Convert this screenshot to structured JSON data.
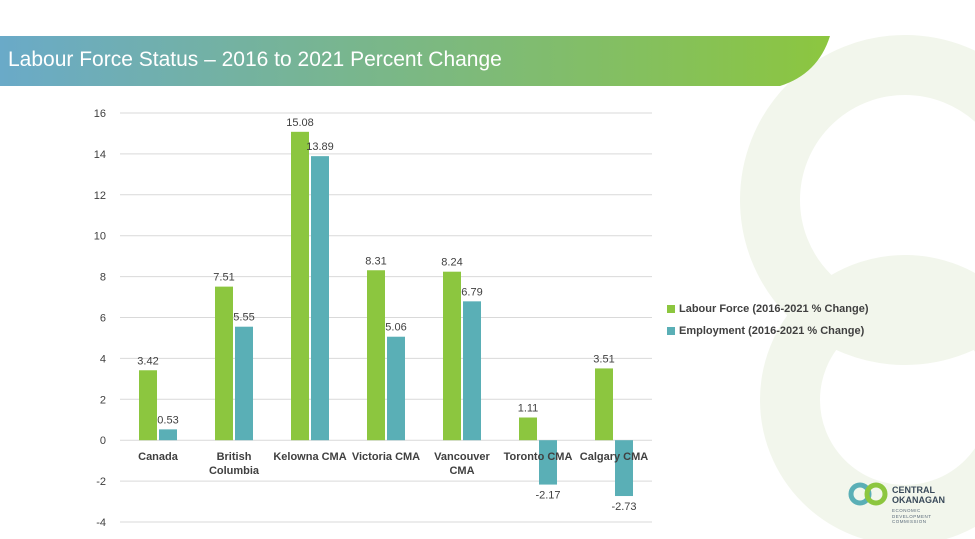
{
  "slide": {
    "title": "Labour Force Status – 2016 to 2021 Percent Change"
  },
  "logo": {
    "line1": "CENTRAL",
    "line2": "OKANAGAN",
    "sub1": "ECONOMIC",
    "sub2": "DEVELOPMENT",
    "sub3": "COMMISSION"
  },
  "colors": {
    "labour_force": "#8cc63f",
    "employment": "#5aafb6",
    "banner_start": "#6aaac8",
    "banner_end": "#8cc63f"
  },
  "chart_data": {
    "type": "bar",
    "title": "",
    "xlabel": "",
    "ylabel": "",
    "ylim": [
      -4,
      16
    ],
    "yticks": [
      16,
      14,
      12,
      10,
      8,
      6,
      4,
      2,
      0,
      -2,
      -4
    ],
    "grid": true,
    "legend_position": "right",
    "categories": [
      [
        "Canada"
      ],
      [
        "British",
        "Columbia"
      ],
      [
        "Kelowna CMA"
      ],
      [
        "Victoria CMA"
      ],
      [
        "Vancouver",
        "CMA"
      ],
      [
        "Toronto CMA"
      ],
      [
        "Calgary CMA"
      ]
    ],
    "series": [
      {
        "name": "Labour Force (2016-2021 % Change)",
        "color": "#8cc63f",
        "values": [
          3.42,
          7.51,
          15.08,
          8.31,
          8.24,
          1.11,
          3.51
        ],
        "labels": [
          "3.42",
          "7.51",
          "15.08",
          "8.31",
          "8.24",
          "1.11",
          "3.51"
        ]
      },
      {
        "name": "Employment (2016-2021 % Change)",
        "color": "#5aafb6",
        "values": [
          0.53,
          5.55,
          13.89,
          5.06,
          6.79,
          -2.17,
          -2.73
        ],
        "labels": [
          "0.53",
          "5.55",
          "13.89",
          "5.06",
          "6.79",
          "-2.17",
          "-2.73"
        ]
      }
    ]
  }
}
